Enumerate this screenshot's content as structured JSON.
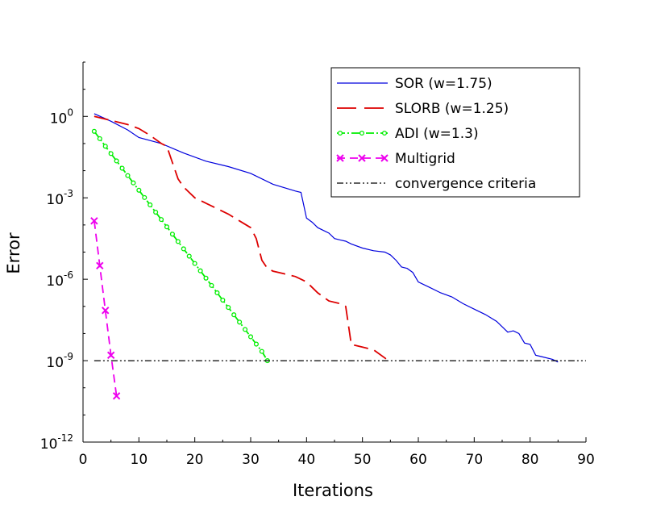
{
  "chart_data": {
    "type": "line",
    "title": "",
    "xlabel": "Iterations",
    "ylabel": "Error",
    "xlim": [
      0,
      90
    ],
    "ylim_log10": [
      -12,
      2
    ],
    "yscale": "log",
    "x_ticks": [
      "0",
      "10",
      "20",
      "30",
      "40",
      "50",
      "60",
      "70",
      "80",
      "90"
    ],
    "y_ticks": [
      {
        "exp": 0,
        "base": "10",
        "sup": "0"
      },
      {
        "exp": -3,
        "base": "10",
        "sup": "-3"
      },
      {
        "exp": -6,
        "base": "10",
        "sup": "-6"
      },
      {
        "exp": -9,
        "base": "10",
        "sup": "-9"
      },
      {
        "exp": -12,
        "base": "10",
        "sup": "-12"
      }
    ],
    "legend_position": "top-right",
    "series": [
      {
        "name": "SOR (w=1.75)",
        "color": "#0000dd",
        "style": "solid",
        "x": [
          2,
          5,
          8,
          10,
          14,
          18,
          22,
          26,
          30,
          34,
          38,
          39,
          40,
          41,
          42,
          43,
          44,
          45,
          46,
          47,
          48,
          50,
          52,
          54,
          55,
          56,
          57,
          58,
          59,
          60,
          62,
          64,
          66,
          68,
          70,
          72,
          74,
          76,
          77,
          78,
          79,
          80,
          81,
          82,
          84,
          85
        ],
        "log10_y": [
          0.1,
          -0.18,
          -0.5,
          -0.78,
          -1.0,
          -1.35,
          -1.65,
          -1.85,
          -2.1,
          -2.5,
          -2.75,
          -2.8,
          -3.75,
          -3.9,
          -4.1,
          -4.2,
          -4.3,
          -4.5,
          -4.55,
          -4.6,
          -4.7,
          -4.85,
          -4.95,
          -5.0,
          -5.1,
          -5.3,
          -5.55,
          -5.6,
          -5.75,
          -6.1,
          -6.3,
          -6.5,
          -6.65,
          -6.9,
          -7.1,
          -7.3,
          -7.55,
          -7.95,
          -7.9,
          -8.0,
          -8.35,
          -8.4,
          -8.8,
          -8.85,
          -8.95,
          -9.05
        ]
      },
      {
        "name": "SLORB (w=1.25)",
        "color": "#dd0000",
        "style": "dashed",
        "x": [
          2,
          5,
          8,
          10,
          12,
          14,
          15,
          16,
          17,
          18,
          19,
          20,
          22,
          24,
          26,
          28,
          30,
          31,
          32,
          33,
          34,
          36,
          38,
          40,
          42,
          44,
          46,
          47,
          48,
          50,
          52,
          54,
          55
        ],
        "log10_y": [
          0,
          -0.15,
          -0.3,
          -0.45,
          -0.7,
          -1.0,
          -1.1,
          -1.7,
          -2.3,
          -2.6,
          -2.8,
          -3.0,
          -3.2,
          -3.4,
          -3.6,
          -3.85,
          -4.1,
          -4.5,
          -5.3,
          -5.6,
          -5.7,
          -5.8,
          -5.9,
          -6.1,
          -6.5,
          -6.8,
          -6.9,
          -7.0,
          -8.4,
          -8.5,
          -8.6,
          -8.9,
          -9.05
        ]
      },
      {
        "name": "ADI (w=1.3)",
        "color": "#00ee00",
        "style": "dash-dot-marker",
        "x": [
          2,
          3,
          4,
          5,
          6,
          7,
          8,
          9,
          10,
          11,
          12,
          13,
          14,
          15,
          16,
          17,
          18,
          19,
          20,
          21,
          22,
          23,
          24,
          25,
          26,
          27,
          28,
          29,
          30,
          31,
          32,
          33
        ],
        "log10_y": [
          -0.55,
          -0.82,
          -1.1,
          -1.37,
          -1.64,
          -1.91,
          -2.18,
          -2.45,
          -2.72,
          -2.99,
          -3.26,
          -3.53,
          -3.8,
          -4.07,
          -4.34,
          -4.61,
          -4.88,
          -5.15,
          -5.42,
          -5.69,
          -5.96,
          -6.23,
          -6.5,
          -6.77,
          -7.04,
          -7.31,
          -7.58,
          -7.85,
          -8.12,
          -8.39,
          -8.66,
          -9.0
        ]
      },
      {
        "name": "Multigrid",
        "color": "#ee00ee",
        "style": "dashed-x",
        "x": [
          2,
          3,
          4,
          5,
          6
        ],
        "log10_y": [
          -3.85,
          -5.5,
          -7.15,
          -8.8,
          -10.3
        ]
      },
      {
        "name": "convergence criteria",
        "color": "#000000",
        "style": "dash-dot-dot",
        "x": [
          2,
          90
        ],
        "log10_y": [
          -9,
          -9
        ]
      }
    ]
  }
}
